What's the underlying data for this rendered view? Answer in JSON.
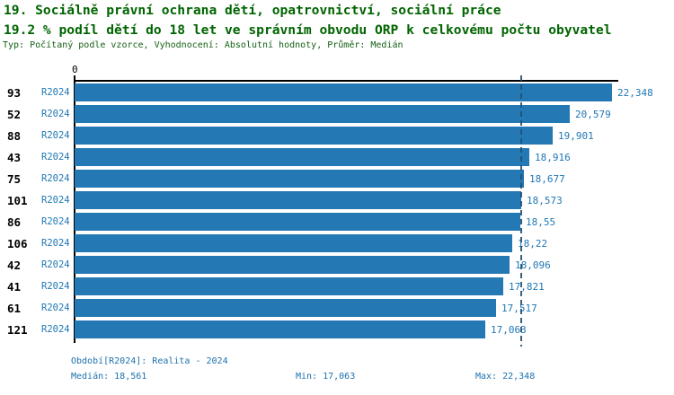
{
  "title": {
    "line1": "19. Sociálně právní ochrana dětí, opatrovnictví, sociální práce",
    "line2": "19.2 % podíl dětí do 18 let ve správním obvodu ORP k celkovému počtu obyvatel",
    "line3": "Typ: Počítaný podle vzorce, Vyhodnocení: Absolutní hodnoty, Průměr: Medián"
  },
  "chart_data": {
    "type": "bar",
    "orientation": "horizontal",
    "origin_label": "0",
    "series_label": "R2024",
    "categories": [
      "93",
      "52",
      "88",
      "43",
      "75",
      "101",
      "86",
      "106",
      "42",
      "41",
      "61",
      "121"
    ],
    "values": [
      22.348,
      20.579,
      19.901,
      18.916,
      18.677,
      18.573,
      18.55,
      18.22,
      18.096,
      17.821,
      17.517,
      17.063
    ],
    "value_labels": [
      "22,348",
      "20,579",
      "19,901",
      "18,916",
      "18,677",
      "18,573",
      "18,55",
      "18,22",
      "18,096",
      "17,821",
      "17,517",
      "17,063"
    ],
    "median": 18.561,
    "median_label": "18,561",
    "min": 17.063,
    "max": 22.348,
    "xlim": [
      0,
      22.5
    ],
    "grid": false,
    "legend_position": "bottom",
    "bar_color": "#2478b4",
    "label_color": "#1f77b4",
    "title_color": "#006400"
  },
  "footer": {
    "period": "Období[R2024]: Realita - 2024",
    "median_text": "Medián: 18,561",
    "min_text": "Min: 17,063",
    "max_text": "Max: 22,348"
  }
}
